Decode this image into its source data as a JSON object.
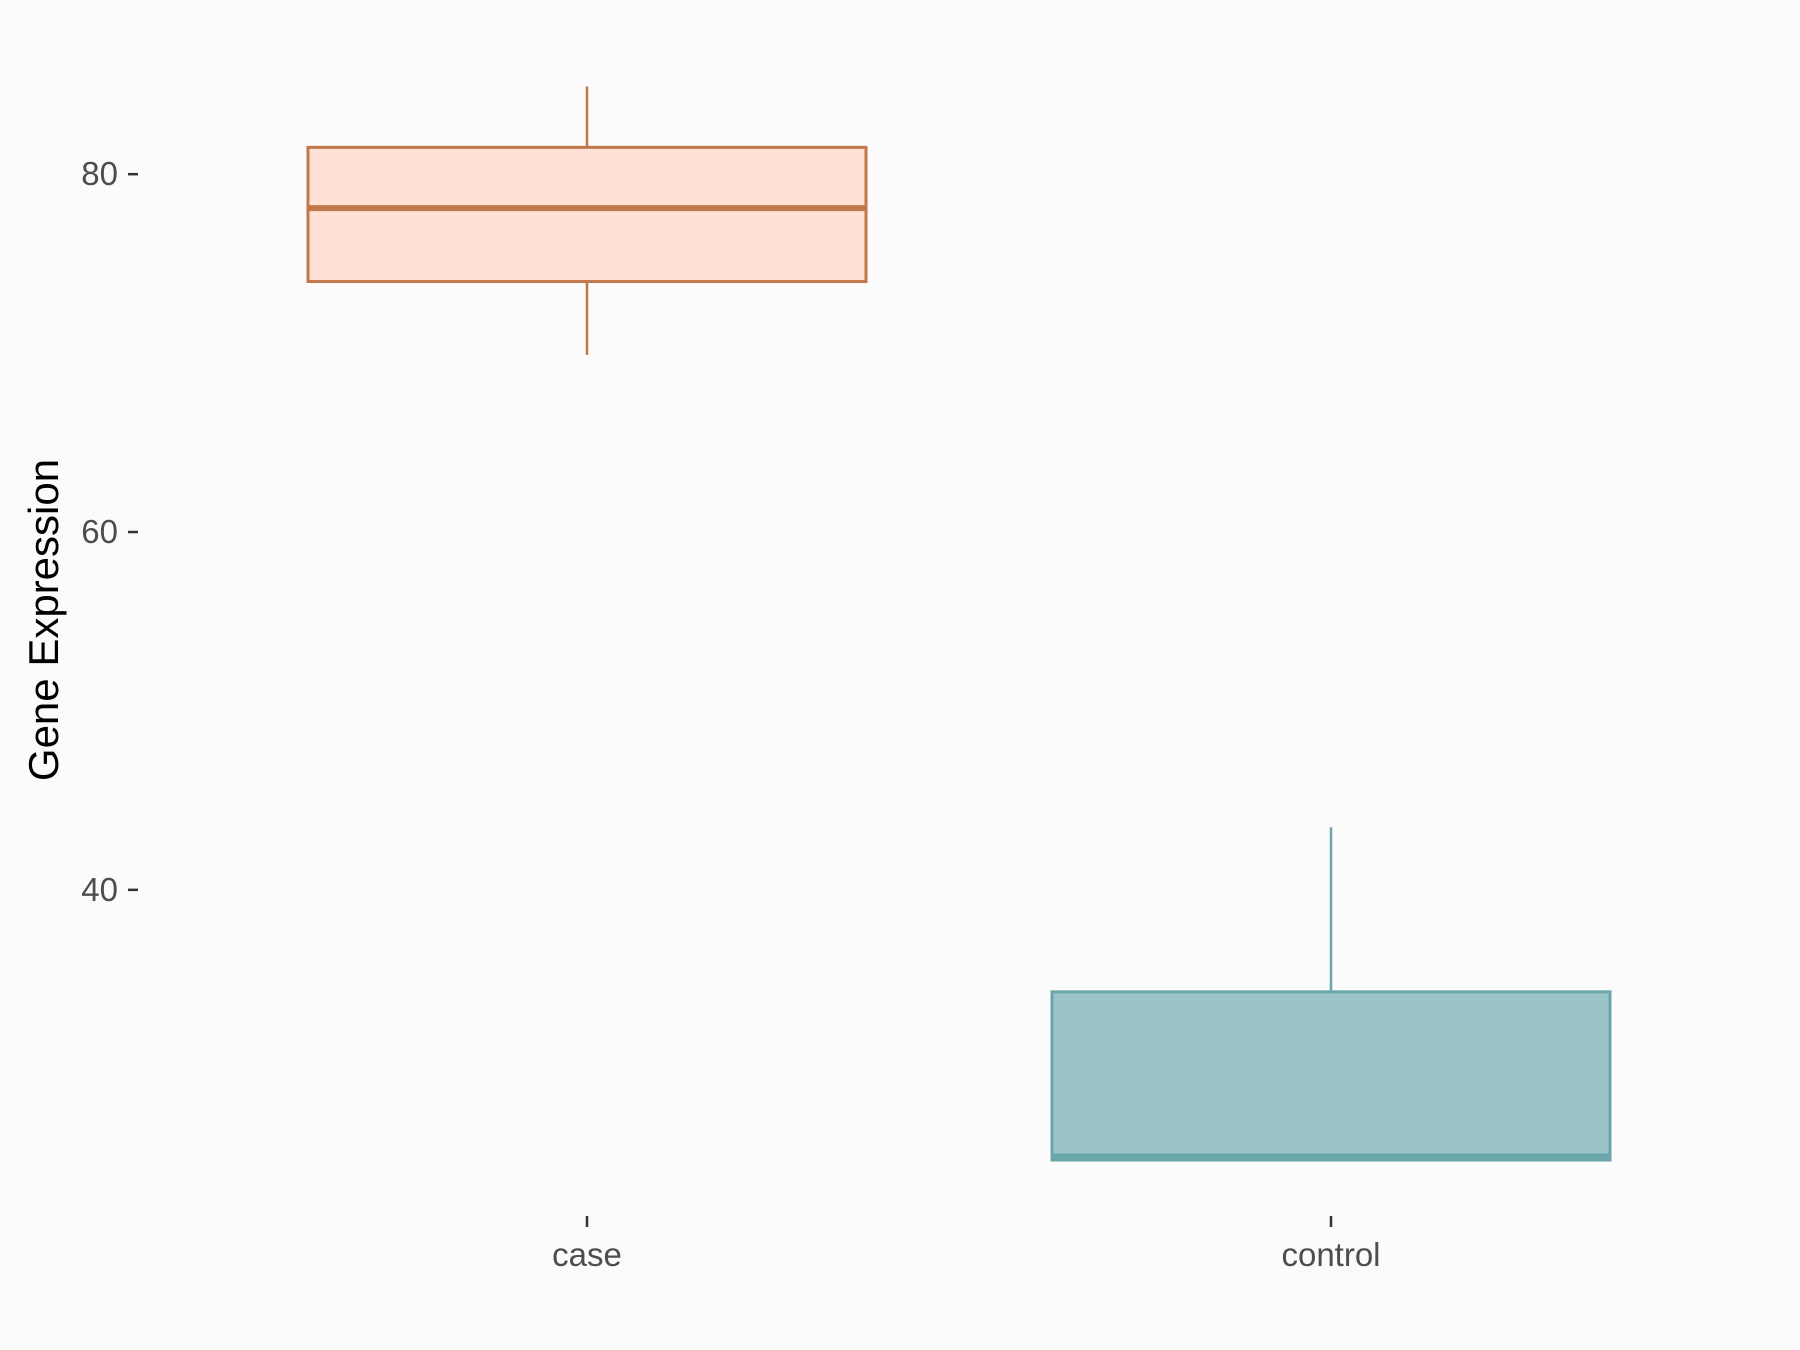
{
  "chart_data": {
    "type": "box",
    "title": "",
    "xlabel": "",
    "ylabel": "Gene Expression",
    "categories": [
      "case",
      "control"
    ],
    "yticks": [
      40,
      60,
      80
    ],
    "ylim": [
      23.0,
      87.5
    ],
    "grid": false,
    "legend": "none",
    "series": [
      {
        "category": "case",
        "min": 69.9,
        "q1": 74.0,
        "median": 78.1,
        "q3": 81.5,
        "max": 84.9,
        "fill": "#ffe1d6",
        "stroke": "#c0784a"
      },
      {
        "category": "control",
        "min": 24.9,
        "q1": 24.9,
        "median": 25.1,
        "q3": 34.3,
        "max": 43.5,
        "fill": "#9cc4c8",
        "stroke": "#6aa6aa"
      }
    ]
  }
}
